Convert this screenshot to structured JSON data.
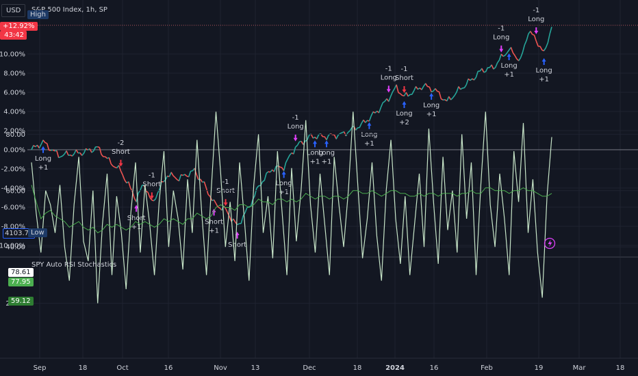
{
  "header": {
    "currency": "USD",
    "symbol_title": "S&P 500 Index, 1h, SP",
    "high_label": "High",
    "low_label": "Low"
  },
  "badges": {
    "change_pct": "+12.92%",
    "countdown": "43:42",
    "low_price": "4103.78",
    "rsi_value": "78.61",
    "stoch_k": "77.95",
    "stoch_d": "59.12"
  },
  "indicator_title": "SPY Auto RSI Stochastics",
  "colors": {
    "background": "#131722",
    "grid": "#1f2330",
    "up": "#26a69a",
    "down": "#ef5350",
    "long_arrow": "#2962ff",
    "short_arrow": "#f23645",
    "exit_arrow": "#e040fb",
    "rsi_line": "#c8e6c9",
    "stoch_line": "#4caf50",
    "zero_line": "#787b86",
    "high_line": "#b2535a"
  },
  "chart_data": [
    {
      "type": "line",
      "title": "S&P 500 Index, 1h, SP",
      "x_ticks": [
        "Sep",
        "18",
        "Oct",
        "16",
        "Nov",
        "13",
        "Dec",
        "18",
        "2024",
        "16",
        "Feb",
        "19",
        "Mar",
        "18"
      ],
      "y_ticks": [
        "-10.00%",
        "-8.00%",
        "-6.00%",
        "-4.00%",
        "-2.00%",
        "0.00%",
        "2.00%",
        "4.00%",
        "6.00%",
        "8.00%",
        "10.00%"
      ],
      "ylim": [
        -10.5,
        13.5
      ],
      "y_unit": "%",
      "price_path": [
        [
          0,
          0
        ],
        [
          3,
          0.8
        ],
        [
          7,
          -0.6
        ],
        [
          13,
          -0.3
        ],
        [
          17,
          0.2
        ],
        [
          20,
          -1.2
        ],
        [
          23,
          -2.2
        ],
        [
          27,
          -5.2
        ],
        [
          29,
          -3.5
        ],
        [
          31,
          -5.6
        ],
        [
          35,
          -2.6
        ],
        [
          38,
          -3.0
        ],
        [
          42,
          -2.2
        ],
        [
          45,
          -4.0
        ],
        [
          47,
          -5.6
        ],
        [
          50,
          -6.3
        ],
        [
          53,
          -8.0
        ],
        [
          56,
          -6.0
        ],
        [
          59,
          -3.5
        ],
        [
          62,
          -2.0
        ],
        [
          65,
          -1.8
        ],
        [
          68,
          0.3
        ],
        [
          72,
          1.4
        ],
        [
          76,
          1.4
        ],
        [
          80,
          1.6
        ],
        [
          85,
          2.6
        ],
        [
          89,
          4.0
        ],
        [
          92,
          5.4
        ],
        [
          94,
          6.5
        ],
        [
          96,
          5.5
        ],
        [
          98,
          6.0
        ],
        [
          101,
          6.7
        ],
        [
          104,
          6.2
        ],
        [
          107,
          5.0
        ],
        [
          110,
          6.2
        ],
        [
          113,
          7.2
        ],
        [
          116,
          8.3
        ],
        [
          119,
          8.6
        ],
        [
          121,
          9.6
        ],
        [
          123,
          10.5
        ],
        [
          126,
          9.3
        ],
        [
          128,
          12.4
        ],
        [
          130,
          11.5
        ],
        [
          132,
          10.0
        ],
        [
          134,
          12.9
        ]
      ],
      "signals": [
        {
          "kind": "long",
          "x": 3,
          "label": "Long",
          "qty": "+1"
        },
        {
          "kind": "short",
          "x": 23,
          "label": "Short",
          "qty": "-2"
        },
        {
          "kind": "exit",
          "x": 27,
          "label": "Short",
          "qty": "+1"
        },
        {
          "kind": "short",
          "x": 31,
          "label": "Short",
          "qty": "-1"
        },
        {
          "kind": "exit",
          "x": 47,
          "label": "Short",
          "qty": "+1"
        },
        {
          "kind": "short",
          "x": 50,
          "label": "Short",
          "qty": "-1"
        },
        {
          "kind": "exit",
          "x": 53,
          "label": "Short",
          "qty": ""
        },
        {
          "kind": "long",
          "x": 65,
          "label": "Long",
          "qty": "+1"
        },
        {
          "kind": "exit",
          "x": 68,
          "label": "Long",
          "qty": "-1"
        },
        {
          "kind": "long",
          "x": 73,
          "label": "Long",
          "qty": "+1"
        },
        {
          "kind": "long",
          "x": 76,
          "label": "Long",
          "qty": "+1"
        },
        {
          "kind": "long",
          "x": 87,
          "label": "Long",
          "qty": "+1"
        },
        {
          "kind": "exit",
          "x": 92,
          "label": "Long",
          "qty": "-1"
        },
        {
          "kind": "long",
          "x": 96,
          "label": "Long",
          "qty": "+2"
        },
        {
          "kind": "short",
          "x": 96,
          "label": "Short",
          "qty": "-1"
        },
        {
          "kind": "long",
          "x": 103,
          "label": "Long",
          "qty": "+1"
        },
        {
          "kind": "exit",
          "x": 121,
          "label": "Long",
          "qty": "-1"
        },
        {
          "kind": "long",
          "x": 123,
          "label": "Long",
          "qty": "+1"
        },
        {
          "kind": "exit",
          "x": 130,
          "label": "Long",
          "qty": "-1"
        },
        {
          "kind": "long",
          "x": 132,
          "label": "Long",
          "qty": "+1"
        }
      ]
    },
    {
      "type": "line",
      "title": "SPY Auto RSI Stochastics",
      "y_ticks": [
        "20.00",
        "40.00",
        "60.00",
        "80.00"
      ],
      "ylim": [
        10,
        95
      ],
      "series": [
        {
          "values": [
            70,
            52,
            38,
            60,
            55,
            45,
            62,
            40,
            28,
            55,
            72,
            42,
            35,
            60,
            20,
            48,
            66,
            30,
            58,
            45,
            25,
            52,
            70,
            38,
            62,
            48,
            30,
            56,
            74,
            40,
            60,
            50,
            32,
            64,
            45,
            78,
            52,
            30,
            60,
            88,
            66,
            40,
            56,
            35,
            70,
            50,
            28,
            62,
            80,
            45,
            58,
            36,
            74,
            52,
            30,
            68,
            42,
            60,
            85,
            55,
            38,
            66,
            48,
            30,
            72,
            55,
            40,
            60,
            88,
            62,
            36,
            50,
            70,
            44,
            28,
            60,
            78,
            50,
            34,
            58,
            30,
            48,
            66,
            40,
            82,
            56,
            34,
            72,
            46,
            60,
            38,
            80,
            50,
            70,
            30,
            62,
            88,
            55,
            40,
            66,
            50,
            30,
            74,
            56,
            84,
            45,
            64,
            38,
            22,
            58,
            79
          ]
        },
        {
          "values": [
            62,
            56,
            50,
            52,
            53,
            51,
            50,
            49,
            47,
            48,
            49,
            47,
            46,
            47,
            45,
            46,
            48,
            47,
            48,
            47,
            46,
            47,
            49,
            48,
            49,
            48,
            47,
            48,
            50,
            49,
            50,
            49,
            48,
            50,
            50,
            52,
            51,
            50,
            51,
            54,
            55,
            54,
            54,
            53,
            55,
            55,
            54,
            55,
            57,
            56,
            56,
            55,
            57,
            57,
            56,
            57,
            56,
            57,
            59,
            58,
            57,
            58,
            58,
            57,
            58,
            58,
            57,
            58,
            60,
            60,
            59,
            59,
            60,
            59,
            58,
            59,
            60,
            60,
            59,
            59,
            58,
            58,
            59,
            58,
            59,
            59,
            58,
            59,
            59,
            59,
            58,
            59,
            59,
            60,
            59,
            59,
            61,
            61,
            60,
            60,
            60,
            59,
            60,
            60,
            61,
            60,
            60,
            59,
            58,
            58,
            59
          ]
        }
      ]
    }
  ]
}
